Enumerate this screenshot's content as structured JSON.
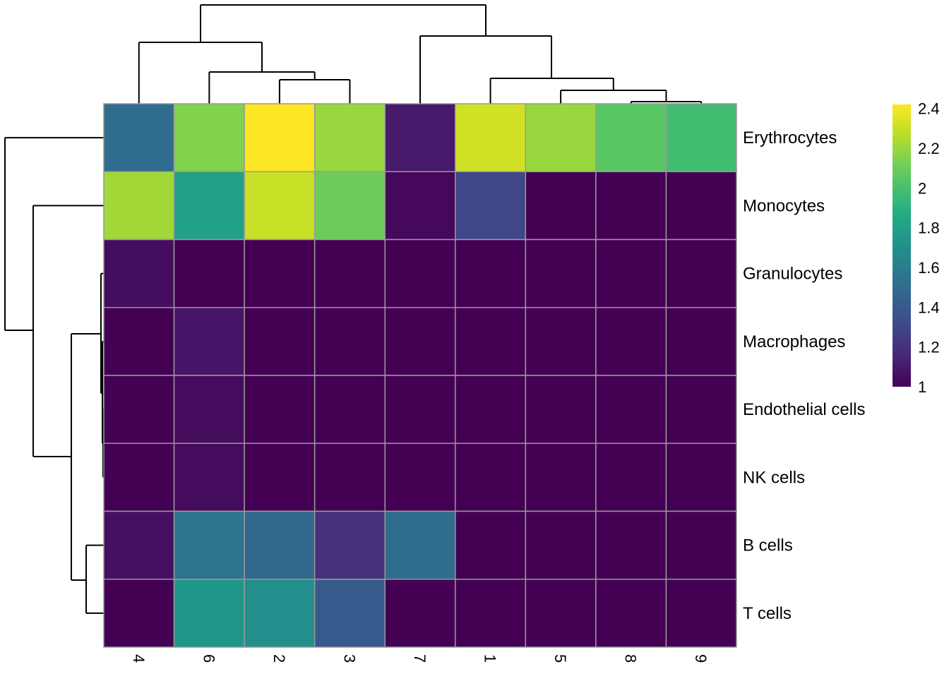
{
  "chart_data": {
    "type": "heatmap",
    "title": "",
    "columns": [
      "4",
      "6",
      "2",
      "3",
      "7",
      "1",
      "5",
      "8",
      "9"
    ],
    "rows": [
      "Erythrocytes",
      "Monocytes",
      "Granulocytes",
      "Macrophages",
      "Endothelial cells",
      "NK cells",
      "B cells",
      "T cells"
    ],
    "values": [
      [
        1.5,
        2.15,
        2.42,
        2.2,
        1.1,
        2.32,
        2.2,
        2.05,
        1.98
      ],
      [
        2.22,
        1.8,
        2.3,
        2.1,
        1.03,
        1.3,
        1.0,
        1.0,
        1.0
      ],
      [
        1.05,
        1.0,
        1.0,
        1.0,
        1.0,
        1.0,
        1.0,
        1.0,
        1.0
      ],
      [
        1.0,
        1.08,
        1.0,
        1.0,
        1.0,
        1.0,
        1.0,
        1.0,
        1.0
      ],
      [
        1.0,
        1.04,
        1.0,
        1.0,
        1.0,
        1.0,
        1.0,
        1.0,
        1.0
      ],
      [
        1.0,
        1.04,
        1.0,
        1.0,
        1.0,
        1.0,
        1.0,
        1.0,
        1.0
      ],
      [
        1.06,
        1.55,
        1.48,
        1.2,
        1.5,
        1.0,
        1.0,
        1.0,
        1.0
      ],
      [
        1.0,
        1.75,
        1.7,
        1.4,
        1.0,
        1.0,
        1.0,
        1.0,
        1.0
      ]
    ],
    "colormap": "viridis",
    "value_range": [
      1,
      2.42
    ],
    "legend": {
      "position": "right",
      "ticks": [
        "2.4",
        "2.2",
        "2",
        "1.8",
        "1.6",
        "1.4",
        "1.2",
        "1"
      ]
    },
    "cell_border_color": "#999999",
    "row_dendrogram": true,
    "column_dendrogram": true
  }
}
